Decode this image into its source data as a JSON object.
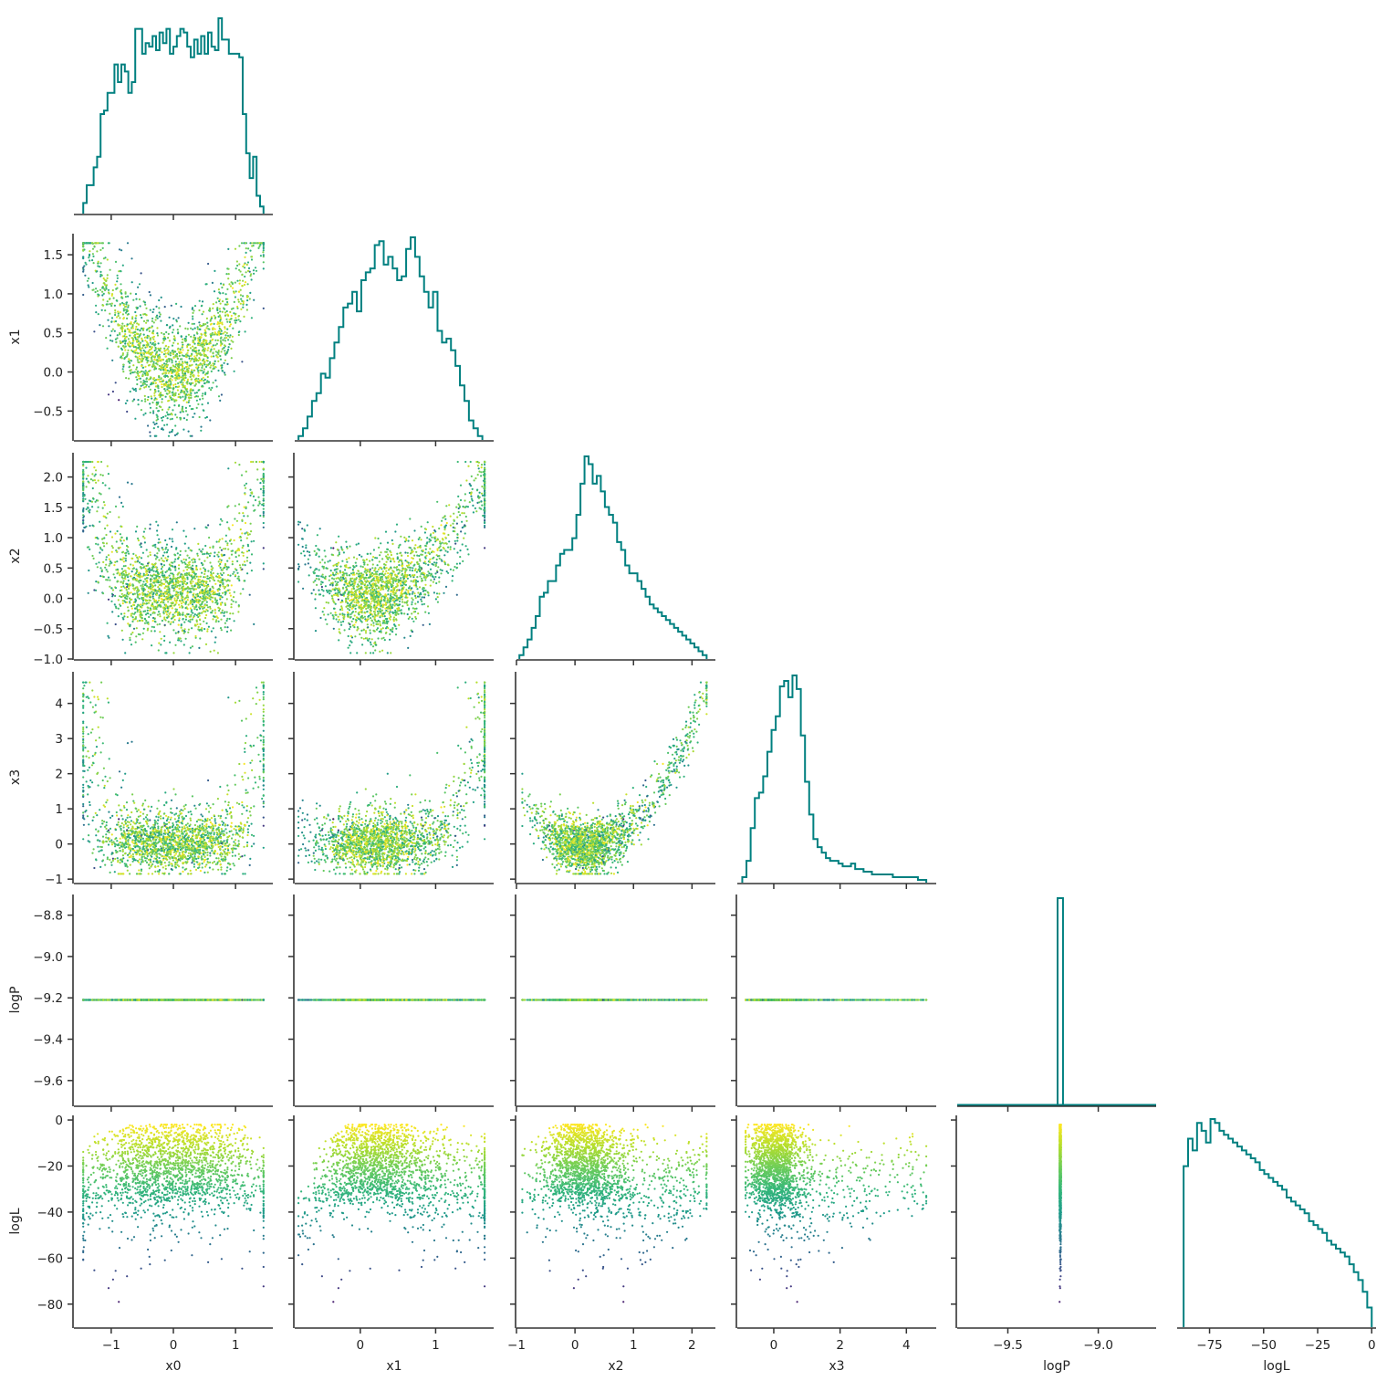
{
  "figure": {
    "variables": [
      "x0",
      "x1",
      "x2",
      "x3",
      "logP",
      "logL"
    ],
    "hist_color": "#008080",
    "colormap": "viridis",
    "color_by": "logL"
  },
  "chart_data": {
    "type": "corner",
    "variables": [
      {
        "name": "x0",
        "label": "x0",
        "lim": [
          -1.6,
          1.6
        ],
        "ticks": [
          -1,
          0,
          1
        ],
        "tick_labels": [
          "−1",
          "0",
          "1"
        ]
      },
      {
        "name": "x1",
        "label": "x1",
        "lim": [
          -0.87,
          1.77
        ],
        "ticks": [
          -0.5,
          0.0,
          0.5,
          1.0,
          1.5
        ],
        "tick_labels": [
          "−0.5",
          "0.0",
          "0.5",
          "1.0",
          "1.5"
        ],
        "x_ticks": [
          0,
          1
        ],
        "x_tick_labels": [
          "0",
          "1"
        ]
      },
      {
        "name": "x2",
        "label": "x2",
        "lim": [
          -1.0,
          2.4
        ],
        "ticks": [
          -1.0,
          -0.5,
          0.0,
          0.5,
          1.0,
          1.5,
          2.0
        ],
        "tick_labels": [
          "−1.0",
          "−0.5",
          "0.0",
          "0.5",
          "1.0",
          "1.5",
          "2.0"
        ],
        "x_ticks": [
          -1,
          0,
          1,
          2
        ],
        "x_tick_labels": [
          "−1",
          "0",
          "1",
          "2"
        ]
      },
      {
        "name": "x3",
        "label": "x3",
        "lim": [
          -1.1,
          4.9
        ],
        "ticks": [
          -1,
          0,
          1,
          2,
          3,
          4
        ],
        "tick_labels": [
          "−1",
          "0",
          "1",
          "2",
          "3",
          "4"
        ],
        "x_ticks": [
          0,
          2,
          4
        ],
        "x_tick_labels": [
          "0",
          "2",
          "4"
        ]
      },
      {
        "name": "logP",
        "label": "logP",
        "lim": [
          -9.72,
          -8.7
        ],
        "ticks": [
          -9.6,
          -9.4,
          -9.2,
          -9.0,
          -8.8
        ],
        "tick_labels": [
          "−9.6",
          "−9.4",
          "−9.2",
          "−9.0",
          "−8.8"
        ],
        "x_lim": [
          -9.78,
          -8.68
        ],
        "x_ticks": [
          -9.5,
          -9.0
        ],
        "x_tick_labels": [
          "−9.5",
          "−9.0"
        ]
      },
      {
        "name": "logL",
        "label": "logL",
        "lim": [
          -90,
          2
        ],
        "ticks": [
          -80,
          -60,
          -40,
          -20,
          0
        ],
        "tick_labels": [
          "−80",
          "−60",
          "−40",
          "−20",
          "0"
        ],
        "x_ticks": [
          -75,
          -50,
          -25,
          0
        ],
        "x_tick_labels": [
          "−75",
          "−50",
          "−25",
          "0"
        ]
      }
    ],
    "logP_constant": -9.21,
    "n_samples": 2000,
    "histograms": {
      "x0": {
        "range": [
          -1.45,
          1.45
        ],
        "counts": [
          3,
          8,
          8,
          13,
          16,
          28,
          29,
          34,
          34,
          42,
          37,
          42,
          40,
          34,
          37,
          52,
          52,
          45,
          48,
          47,
          50,
          46,
          51,
          48,
          52,
          45,
          47,
          50,
          52,
          51,
          47,
          44,
          49,
          45,
          50,
          45,
          51,
          47,
          46,
          55,
          49,
          49,
          45,
          45,
          45,
          44,
          28,
          17,
          10,
          16,
          5,
          2
        ]
      },
      "x1": {
        "range": [
          -0.82,
          1.62
        ],
        "counts": [
          1,
          3,
          6,
          10,
          12,
          17,
          16,
          21,
          25,
          29,
          34,
          35,
          38,
          33,
          41,
          43,
          44,
          50,
          51,
          45,
          47,
          44,
          41,
          42,
          49,
          52,
          47,
          42,
          38,
          34,
          38,
          28,
          25,
          26,
          23,
          19,
          14,
          10,
          5,
          3,
          1
        ]
      },
      "x2": {
        "range": [
          -0.95,
          2.25
        ],
        "counts": [
          1,
          3,
          5,
          8,
          11,
          16,
          17,
          20,
          20,
          24,
          27,
          28,
          28,
          31,
          37,
          45,
          52,
          50,
          45,
          47,
          43,
          39,
          37,
          35,
          30,
          28,
          24,
          22,
          22,
          20,
          18,
          16,
          14,
          13,
          12,
          11,
          10,
          9,
          8,
          7,
          6,
          5,
          4,
          3,
          2,
          1
        ]
      },
      "x3": {
        "range": [
          -0.95,
          4.6
        ],
        "counts": [
          2,
          8,
          20,
          31,
          33,
          39,
          48,
          56,
          61,
          72,
          74,
          68,
          76,
          71,
          54,
          37,
          25,
          16,
          13,
          11,
          9,
          8,
          8,
          7,
          6,
          6,
          7,
          5,
          5,
          4,
          4,
          3,
          3,
          3,
          3,
          3,
          2,
          2,
          2,
          2,
          2,
          2,
          1,
          1
        ]
      },
      "logP": {
        "range": [
          -9.225,
          -9.195
        ],
        "counts": [
          1
        ],
        "x_range": [
          -9.78,
          -8.68
        ]
      },
      "logL": {
        "range": [
          -87,
          0
        ],
        "counts": [
          41,
          48,
          45,
          52,
          50,
          47,
          53,
          52,
          50,
          49,
          48,
          47,
          46,
          45,
          44,
          43,
          42,
          40,
          39,
          38,
          37,
          36,
          35,
          33,
          32,
          31,
          30,
          29,
          27,
          26,
          25,
          24,
          22,
          21,
          20,
          19,
          18,
          16,
          14,
          12,
          9,
          5
        ]
      }
    },
    "title": "",
    "legend": "none",
    "grid": false
  }
}
